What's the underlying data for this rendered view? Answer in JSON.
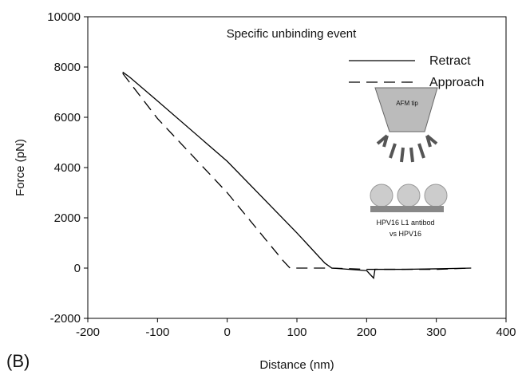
{
  "chart_data": {
    "type": "line",
    "title": "Specific unbinding event",
    "panel_label": "(B)",
    "x_label": "Distance (nm)",
    "y_label": "Force (pN)",
    "inset_labels": [
      "AFM tip",
      "HPV16 L1 antibod",
      "vs HPV16"
    ],
    "xlim": [
      -200,
      400
    ],
    "xticks": [
      -200,
      -100,
      0,
      100,
      200,
      300,
      400
    ],
    "ylim": [
      -2000,
      10000
    ],
    "yticks": [
      -2000,
      0,
      2000,
      4000,
      6000,
      8000,
      10000
    ],
    "legend": "upper right",
    "series": [
      {
        "name": "Retract",
        "color": "#000000",
        "dash": "solid",
        "x": [
          -150,
          -140,
          -100,
          0,
          100,
          140,
          150,
          200,
          205,
          210,
          212,
          250,
          300,
          350
        ],
        "values": [
          7800,
          7600,
          6650,
          4250,
          1400,
          200,
          0,
          -100,
          -250,
          -400,
          -50,
          -50,
          -30,
          0
        ]
      },
      {
        "name": "Approach",
        "color": "#000000",
        "dash": "dashed",
        "x": [
          -150,
          -100,
          0,
          80,
          90,
          150,
          200,
          300,
          350
        ],
        "values": [
          7750,
          5950,
          3000,
          300,
          0,
          0,
          -50,
          -50,
          0
        ]
      }
    ]
  }
}
